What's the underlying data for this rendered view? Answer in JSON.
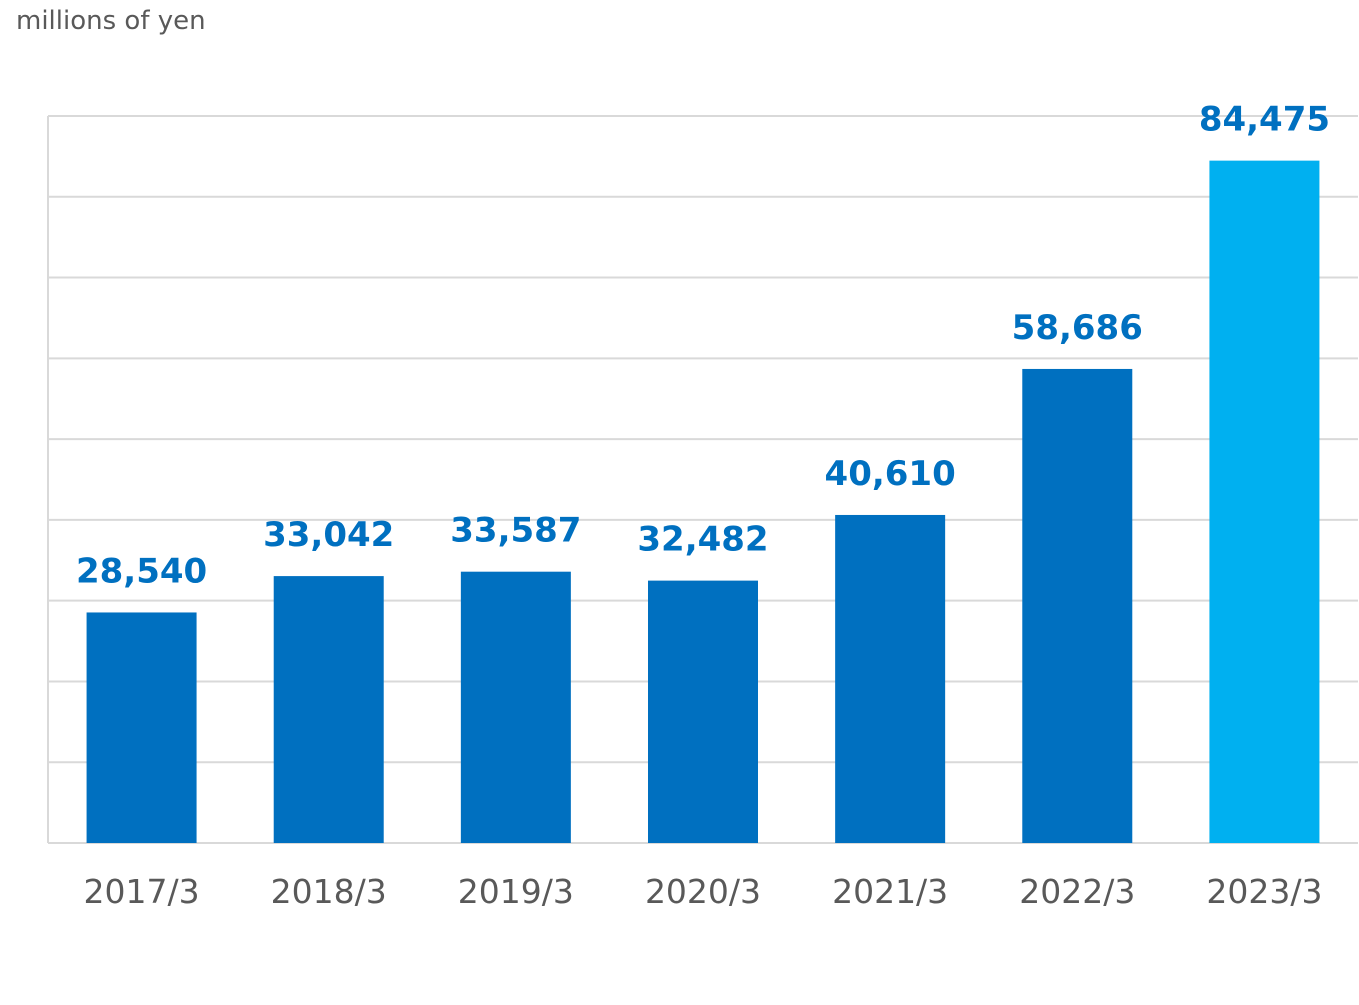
{
  "chart_data": {
    "type": "bar",
    "unit_label": "millions of yen",
    "categories": [
      "2017/3",
      "2018/3",
      "2019/3",
      "2020/3",
      "2021/3",
      "2022/3",
      "2023/3"
    ],
    "values": [
      28540,
      33042,
      33587,
      32482,
      40610,
      58686,
      84475
    ],
    "value_labels": [
      "28,540",
      "33,042",
      "33,587",
      "32,482",
      "40,610",
      "58,686",
      "84,475"
    ],
    "ylim": [
      0,
      90000
    ],
    "gridlines": true,
    "colors": {
      "bar": "#0070c0",
      "highlight_bar": "#00b0f0",
      "data_label": "#0070c0",
      "tick_label": "#595959",
      "grid": "#d9d9d9"
    },
    "highlight_index": 6
  }
}
